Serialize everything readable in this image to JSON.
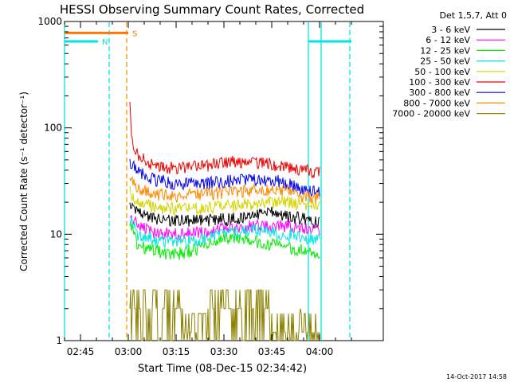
{
  "chart_data": {
    "type": "line",
    "title": "HESSI Observing Summary Count Rates, Corrected",
    "xlabel": "Start Time (08-Dec-15 02:34:42)",
    "ylabel": "Corrected Count Rate (s⁻¹ detector⁻¹)",
    "yscale": "log",
    "ylim": [
      1,
      1000
    ],
    "xlim_minutes": [
      -20,
      80
    ],
    "x_ticks": [
      {
        "minutes": -15,
        "label": "02:45"
      },
      {
        "minutes": 0,
        "label": "03:00"
      },
      {
        "minutes": 15,
        "label": "03:15"
      },
      {
        "minutes": 30,
        "label": "03:30"
      },
      {
        "minutes": 45,
        "label": "03:45"
      },
      {
        "minutes": 60,
        "label": "04:00"
      }
    ],
    "y_ticks": [
      {
        "value": 1,
        "label": "1"
      },
      {
        "value": 10,
        "label": "10"
      },
      {
        "value": 100,
        "label": "100"
      },
      {
        "value": 1000,
        "label": "1000"
      }
    ],
    "legend_title": "Det 1,5,7, Att 0",
    "legend_position": "outside-right",
    "series": [
      {
        "name": "3 - 6 keV",
        "color": "#000000",
        "x": [
          0.5,
          3,
          8,
          15,
          23,
          32,
          40,
          45,
          50,
          55,
          60
        ],
        "values": [
          20,
          16,
          14,
          13.5,
          13.5,
          14,
          15,
          16,
          15,
          14,
          13
        ]
      },
      {
        "name": "6 - 12 keV",
        "color": "#ff00ff",
        "x": [
          0.5,
          3,
          8,
          15,
          23,
          32,
          40,
          45,
          50,
          55,
          60
        ],
        "values": [
          15,
          12,
          10.5,
          10,
          10.5,
          11.5,
          12,
          12,
          12,
          11.5,
          11
        ]
      },
      {
        "name": "12 - 25 keV",
        "color": "#00ee00",
        "x": [
          0.5,
          3,
          8,
          15,
          23,
          32,
          40,
          45,
          50,
          55,
          60
        ],
        "values": [
          13,
          8,
          7,
          6.5,
          7.5,
          9.5,
          8.5,
          8,
          7.5,
          7,
          6.5
        ]
      },
      {
        "name": "25 - 50 keV",
        "color": "#00e5e5",
        "x": [
          0.5,
          3,
          8,
          15,
          23,
          32,
          40,
          45,
          50,
          55,
          60
        ],
        "values": [
          15,
          10,
          9,
          8.5,
          9,
          10.5,
          11,
          10.5,
          10,
          9.5,
          9
        ]
      },
      {
        "name": "50 - 100 keV",
        "color": "#d4d400",
        "x": [
          0.5,
          3,
          8,
          15,
          23,
          32,
          40,
          45,
          50,
          55,
          60
        ],
        "values": [
          25,
          20,
          18,
          17.5,
          17.5,
          18.5,
          19.5,
          20,
          20,
          19.5,
          19
        ]
      },
      {
        "name": "100 - 300 keV",
        "color": "#ee0000",
        "x": [
          0.5,
          1,
          3,
          8,
          15,
          23,
          32,
          40,
          45,
          50,
          55,
          60
        ],
        "values": [
          160,
          80,
          55,
          45,
          42,
          44,
          48,
          47,
          46,
          42,
          40,
          38
        ]
      },
      {
        "name": "300 - 800 keV",
        "color": "#0000ee",
        "x": [
          0.5,
          3,
          8,
          15,
          23,
          32,
          40,
          45,
          50,
          55,
          60
        ],
        "values": [
          48,
          38,
          33,
          30,
          30,
          32,
          33,
          33,
          30,
          27,
          25
        ]
      },
      {
        "name": "800 - 7000 keV",
        "color": "#ff8800",
        "x": [
          0.5,
          3,
          8,
          15,
          23,
          32,
          40,
          45,
          50,
          55,
          60
        ],
        "values": [
          33,
          27,
          24,
          23,
          24,
          25,
          26,
          26,
          25,
          23,
          22
        ]
      },
      {
        "name": "7000 - 20000 keV",
        "color": "#8b8000",
        "x": [
          0.5,
          4,
          7,
          12,
          17,
          21,
          25,
          28,
          32,
          36,
          40,
          44,
          47,
          50,
          54,
          57,
          60
        ],
        "values": [
          3,
          2,
          2,
          2,
          2,
          1,
          2,
          2,
          2,
          2,
          2,
          2,
          1,
          1,
          2,
          1,
          1
        ]
      }
    ],
    "flag_bars": [
      {
        "label": "N",
        "color": "#00e5e5",
        "value": 650,
        "segments": [
          [
            -20,
            -9.5
          ],
          [
            56.5,
            70
          ]
        ]
      },
      {
        "label": "S",
        "color": "#ff7700",
        "value": 780,
        "segments": [
          [
            -20,
            0
          ]
        ]
      }
    ],
    "vertical_lines": [
      {
        "minutes": -20,
        "color": "#00e5e5",
        "dashed": false
      },
      {
        "minutes": -6,
        "color": "#00e5e5",
        "dashed": true
      },
      {
        "minutes": -0.5,
        "color": "#ee9900",
        "dashed": true
      },
      {
        "minutes": 56.5,
        "color": "#00e5e5",
        "dashed": false
      },
      {
        "minutes": 60.5,
        "color": "#00e5e5",
        "dashed": false
      },
      {
        "minutes": 69.5,
        "color": "#00e5e5",
        "dashed": true
      }
    ],
    "footer_date": "14-Oct-2017 14:58"
  }
}
